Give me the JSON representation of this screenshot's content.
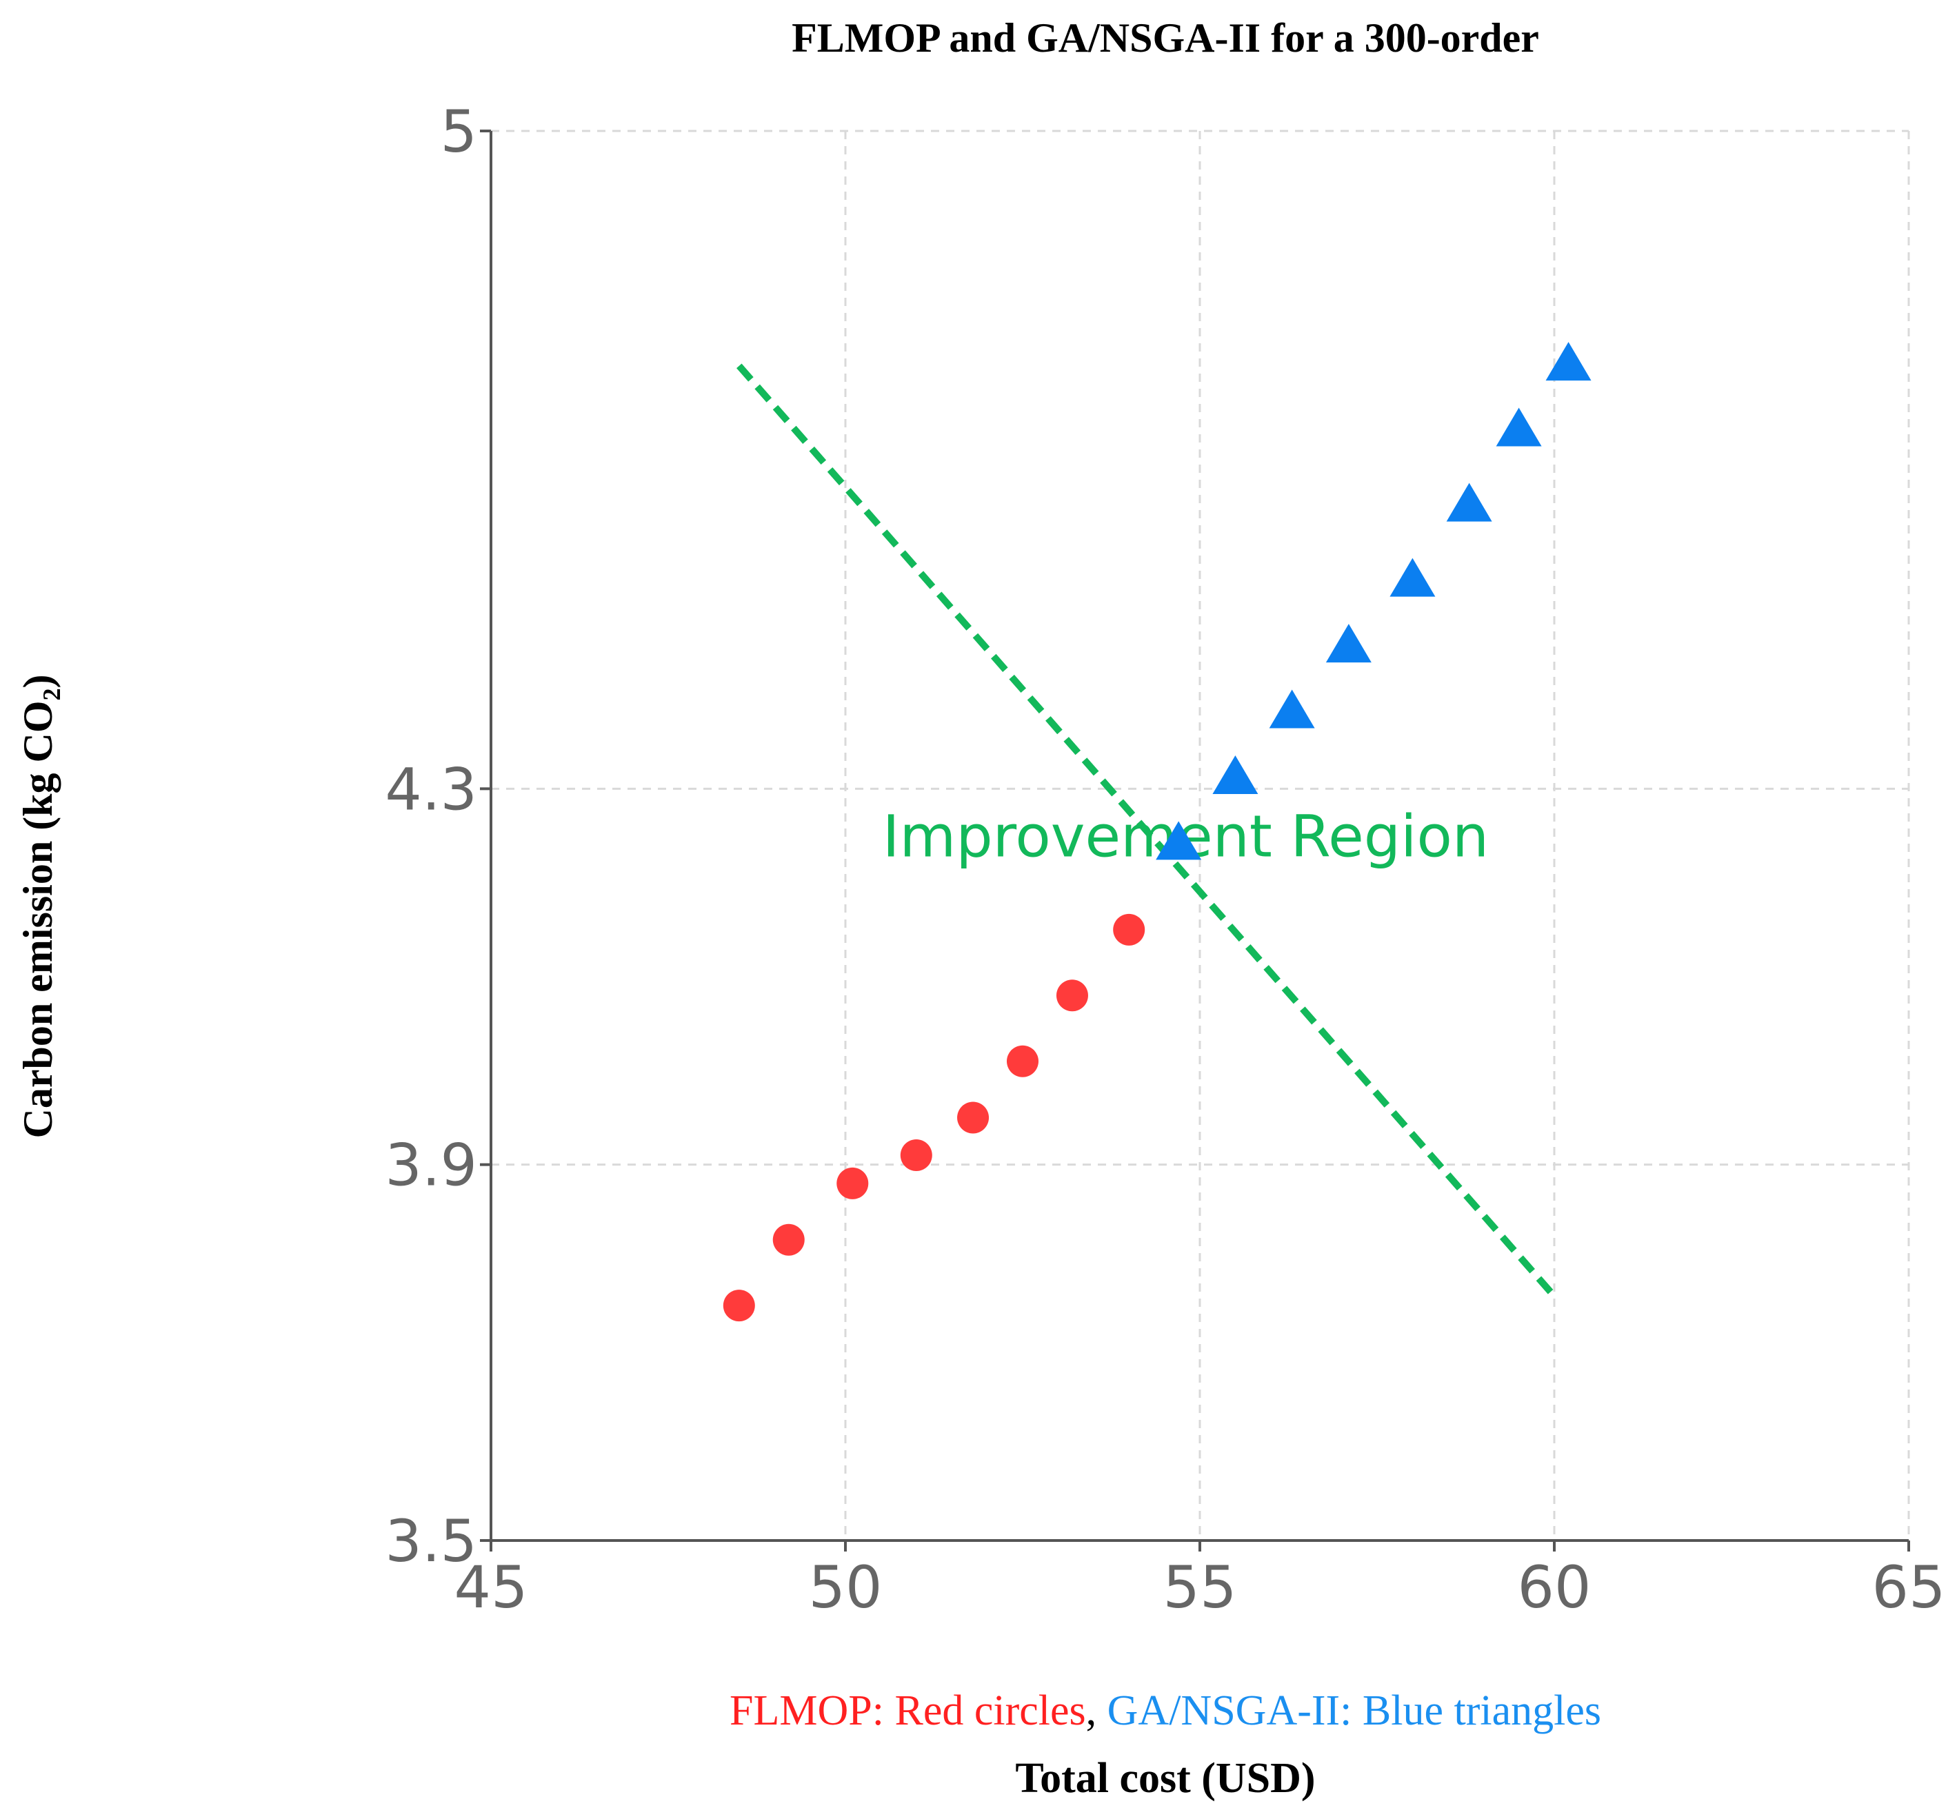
{
  "chart_data": {
    "type": "scatter",
    "title": "FLMOP and GA/NSGA-II for a 300-order",
    "xlabel": "Total cost (USD)",
    "ylabel": "Carbon emission (kg CO₂)",
    "xlim": [
      45,
      65
    ],
    "ylim": [
      3.5,
      5
    ],
    "xticks": [
      45,
      50,
      55,
      60,
      65
    ],
    "yticks": [
      3.5,
      3.9,
      4.3,
      5
    ],
    "tick_labels_x": [
      "45",
      "50",
      "55",
      "60",
      "65"
    ],
    "tick_labels_y": [
      "3.5",
      "3.9",
      "4.3",
      "5"
    ],
    "grid": true,
    "series": [
      {
        "name": "FLMOP",
        "marker": "circle",
        "color": "#ff3b3b",
        "points": [
          {
            "x": 48.5,
            "y": 3.75
          },
          {
            "x": 49.2,
            "y": 3.82
          },
          {
            "x": 50.1,
            "y": 3.88
          },
          {
            "x": 51.0,
            "y": 3.91
          },
          {
            "x": 51.8,
            "y": 3.95
          },
          {
            "x": 52.5,
            "y": 4.01
          },
          {
            "x": 53.2,
            "y": 4.08
          },
          {
            "x": 54.0,
            "y": 4.15
          }
        ]
      },
      {
        "name": "GA/NSGA-II",
        "marker": "triangle",
        "color": "#0b7ff0",
        "points": [
          {
            "x": 54.7,
            "y": 4.24
          },
          {
            "x": 55.5,
            "y": 4.31
          },
          {
            "x": 56.3,
            "y": 4.38
          },
          {
            "x": 57.1,
            "y": 4.45
          },
          {
            "x": 58.0,
            "y": 4.52
          },
          {
            "x": 58.8,
            "y": 4.6
          },
          {
            "x": 59.5,
            "y": 4.68
          },
          {
            "x": 60.2,
            "y": 4.75
          }
        ]
      }
    ],
    "annotations": [
      {
        "type": "line",
        "style": "dashed",
        "color": "#12b85a",
        "from": {
          "x": 48.5,
          "y": 4.75
        },
        "to": {
          "x": 60.0,
          "y": 3.76
        }
      },
      {
        "type": "text",
        "text": "Improvement Region",
        "color": "#12b85a",
        "at": {
          "x": 54.8,
          "y": 4.25
        }
      }
    ],
    "caption": {
      "part1": "FLMOP: Red circles",
      "separator": ", ",
      "part2": "GA/NSGA-II: Blue triangles",
      "part1_color": "#ff2020",
      "separator_color": "#000000",
      "part2_color": "#1a8ff0"
    }
  }
}
